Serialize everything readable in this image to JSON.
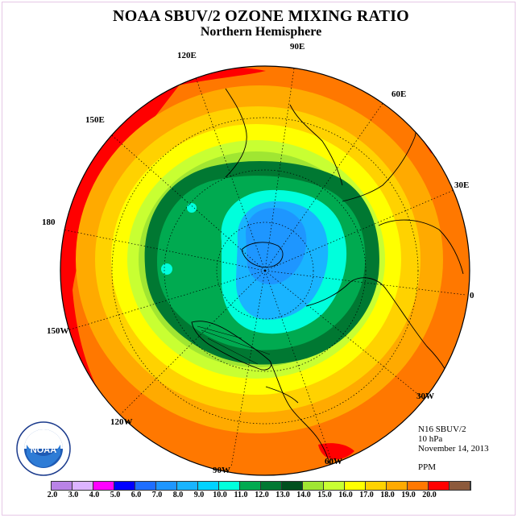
{
  "header": {
    "title": "NOAA SBUV/2 OZONE MIXING RATIO",
    "subtitle": "Northern Hemisphere"
  },
  "map": {
    "projection": "north-polar-stereographic",
    "longitude_labels": [
      "90E",
      "60E",
      "30E",
      "0",
      "30W",
      "60W",
      "90W",
      "120W",
      "150W",
      "180",
      "150E",
      "120E"
    ],
    "contour_bands_outer_to_inner": [
      "18.0-19.0",
      "17.0-18.0",
      "16.0-17.0",
      "15.0-16.0",
      "14.0-15.0",
      "13.0-14.0",
      "12.0-13.0",
      "11.0-12.0",
      "10.0-11.0",
      "9.0-10.0",
      "8.0-9.0",
      "7.0-8.0"
    ]
  },
  "info": {
    "instrument": "N16 SBUV/2",
    "level": "10 hPa",
    "date": "November 14, 2013",
    "units": "PPM"
  },
  "logo": {
    "text": "NOAA"
  },
  "colorbar": {
    "labels": [
      "2.0",
      "3.0",
      "4.0",
      "5.0",
      "6.0",
      "7.0",
      "8.0",
      "9.0",
      "10.0",
      "11.0",
      "12.0",
      "13.0",
      "14.0",
      "15.0",
      "16.0",
      "17.0",
      "18.0",
      "19.0",
      "20.0"
    ],
    "colors": [
      "#b983e6",
      "#dcb4ff",
      "#ff00ff",
      "#0000ff",
      "#1e6eff",
      "#1e96ff",
      "#19b4ff",
      "#00d2ff",
      "#00ffdc",
      "#00aa50",
      "#007832",
      "#00501e",
      "#a0e632",
      "#c8ff32",
      "#ffff00",
      "#ffd200",
      "#ffaa00",
      "#ff7800",
      "#ff0000",
      "#8c5a3c"
    ]
  }
}
